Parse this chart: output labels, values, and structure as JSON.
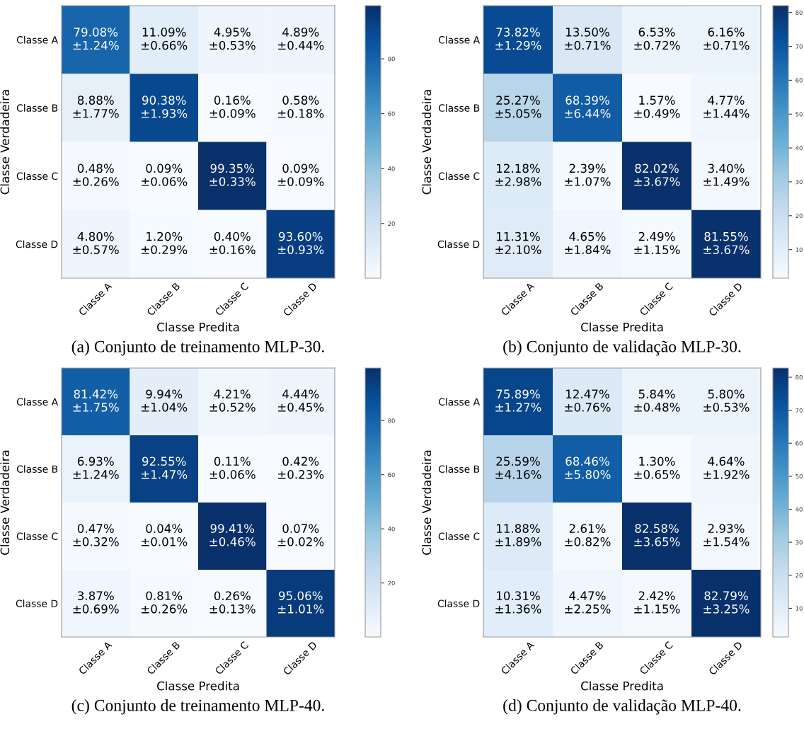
{
  "chart_data": [
    {
      "type": "heatmap",
      "title": "(a) Conjunto de treinamento MLP-30.",
      "xlabel": "Classe Predita",
      "ylabel": "Classe Verdadeira",
      "categories": [
        "Classe A",
        "Classe B",
        "Classe C",
        "Classe D"
      ],
      "y_categories": [
        "Classe A",
        "Classe B",
        "Classe C",
        "Classe D"
      ],
      "cells": [
        [
          79.08,
          11.09,
          4.95,
          4.89
        ],
        [
          8.88,
          90.38,
          0.16,
          0.58
        ],
        [
          0.48,
          0.09,
          99.35,
          0.09
        ],
        [
          4.8,
          1.2,
          0.4,
          93.6
        ]
      ],
      "cell_labels": [
        [
          "79.08%\n±1.24%",
          "11.09%\n±0.66%",
          "4.95%\n±0.53%",
          "4.89%\n±0.44%"
        ],
        [
          "8.88%\n±1.77%",
          "90.38%\n±1.93%",
          "0.16%\n±0.09%",
          "0.58%\n±0.18%"
        ],
        [
          "0.48%\n±0.26%",
          "0.09%\n±0.06%",
          "99.35%\n±0.33%",
          "0.09%\n±0.09%"
        ],
        [
          "4.80%\n±0.57%",
          "1.20%\n±0.29%",
          "0.40%\n±0.16%",
          "93.60%\n±0.93%"
        ]
      ],
      "clim": [
        0.09,
        99.35
      ],
      "cticks": [
        20,
        40,
        60,
        80
      ]
    },
    {
      "type": "heatmap",
      "title": "(b) Conjunto de validação MLP-30.",
      "xlabel": "Classe Predita",
      "ylabel": "Classe Verdadeira",
      "categories": [
        "Classe A",
        "Classe B",
        "Classe C",
        "Classe D"
      ],
      "y_categories": [
        "Classe A",
        "Classe B",
        "Classe C",
        "Classe D"
      ],
      "cells": [
        [
          73.82,
          13.5,
          6.53,
          6.16
        ],
        [
          25.27,
          68.39,
          1.57,
          4.77
        ],
        [
          12.18,
          2.39,
          82.02,
          3.4
        ],
        [
          11.31,
          4.65,
          2.49,
          81.55
        ]
      ],
      "cell_labels": [
        [
          "73.82%\n±1.29%",
          "13.50%\n±0.71%",
          "6.53%\n±0.72%",
          "6.16%\n±0.71%"
        ],
        [
          "25.27%\n±5.05%",
          "68.39%\n±6.44%",
          "1.57%\n±0.49%",
          "4.77%\n±1.44%"
        ],
        [
          "12.18%\n±2.98%",
          "2.39%\n±1.07%",
          "82.02%\n±3.67%",
          "3.40%\n±1.49%"
        ],
        [
          "11.31%\n±2.10%",
          "4.65%\n±1.84%",
          "2.49%\n±1.15%",
          "81.55%\n±3.67%"
        ]
      ],
      "clim": [
        1.57,
        82.02
      ],
      "cticks": [
        10,
        20,
        30,
        40,
        50,
        60,
        70,
        80
      ]
    },
    {
      "type": "heatmap",
      "title": "(c) Conjunto de treinamento MLP-40.",
      "xlabel": "Classe Predita",
      "ylabel": "Classe Verdadeira",
      "categories": [
        "Classe A",
        "Classe B",
        "Classe C",
        "Classe D"
      ],
      "y_categories": [
        "Classe A",
        "Classe B",
        "Classe C",
        "Classe D"
      ],
      "cells": [
        [
          81.42,
          9.94,
          4.21,
          4.44
        ],
        [
          6.93,
          92.55,
          0.11,
          0.42
        ],
        [
          0.47,
          0.04,
          99.41,
          0.07
        ],
        [
          3.87,
          0.81,
          0.26,
          95.06
        ]
      ],
      "cell_labels": [
        [
          "81.42%\n±1.75%",
          "9.94%\n±1.04%",
          "4.21%\n±0.52%",
          "4.44%\n±0.45%"
        ],
        [
          "6.93%\n±1.24%",
          "92.55%\n±1.47%",
          "0.11%\n±0.06%",
          "0.42%\n±0.23%"
        ],
        [
          "0.47%\n±0.32%",
          "0.04%\n±0.01%",
          "99.41%\n±0.46%",
          "0.07%\n±0.02%"
        ],
        [
          "3.87%\n±0.69%",
          "0.81%\n±0.26%",
          "0.26%\n±0.13%",
          "95.06%\n±1.01%"
        ]
      ],
      "clim": [
        0.04,
        99.41
      ],
      "cticks": [
        20,
        40,
        60,
        80
      ]
    },
    {
      "type": "heatmap",
      "title": "(d) Conjunto de validação MLP-40.",
      "xlabel": "Classe Predita",
      "ylabel": "Classe Verdadeira",
      "categories": [
        "Classe A",
        "Classe B",
        "Classe C",
        "Classe D"
      ],
      "y_categories": [
        "Classe A",
        "Classe B",
        "Classe C",
        "Classe D"
      ],
      "cells": [
        [
          75.89,
          12.47,
          5.84,
          5.8
        ],
        [
          25.59,
          68.46,
          1.3,
          4.64
        ],
        [
          11.88,
          2.61,
          82.58,
          2.93
        ],
        [
          10.31,
          4.47,
          2.42,
          82.79
        ]
      ],
      "cell_labels": [
        [
          "75.89%\n±1.27%",
          "12.47%\n±0.76%",
          "5.84%\n±0.48%",
          "5.80%\n±0.53%"
        ],
        [
          "25.59%\n±4.16%",
          "68.46%\n±5.80%",
          "1.30%\n±0.65%",
          "4.64%\n±1.92%"
        ],
        [
          "11.88%\n±1.89%",
          "2.61%\n±0.82%",
          "82.58%\n±3.65%",
          "2.93%\n±1.54%"
        ],
        [
          "10.31%\n±1.36%",
          "4.47%\n±2.25%",
          "2.42%\n±1.15%",
          "82.79%\n±3.25%"
        ]
      ],
      "clim": [
        1.3,
        82.79
      ],
      "cticks": [
        10,
        20,
        30,
        40,
        50,
        60,
        70,
        80
      ]
    }
  ]
}
